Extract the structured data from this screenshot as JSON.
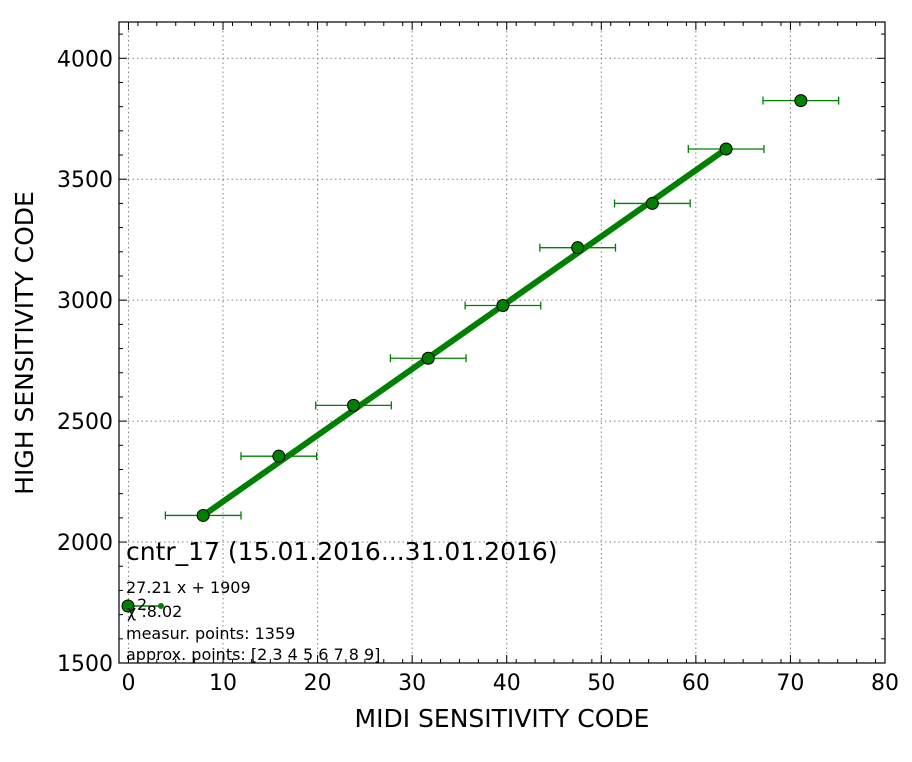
{
  "chart_data": {
    "type": "scatter",
    "title": "cntr_17 (15.01.2016...31.01.2016)",
    "xlabel": "MIDI SENSITIVITY CODE",
    "ylabel": "HIGH SENSITIVITY CODE",
    "xlim": [
      -1,
      80
    ],
    "ylim": [
      1500,
      4150
    ],
    "xticks": [
      0,
      10,
      20,
      30,
      40,
      50,
      60,
      70,
      80
    ],
    "yticks": [
      1500,
      2000,
      2500,
      3000,
      3500,
      4000
    ],
    "grid": true,
    "legend_position": "lower-left",
    "colors": {
      "series": "#008000",
      "fit": "#008000",
      "marker_edge": "#000000",
      "grid": "#808080"
    },
    "series": [
      {
        "x": [
          7.9,
          15.9,
          23.8,
          31.7,
          39.6,
          47.5,
          55.4,
          63.2,
          71.1
        ],
        "y": [
          2110,
          2355,
          2565,
          2760,
          2978,
          3217,
          3400,
          3625,
          3825
        ],
        "xerr": [
          4,
          4,
          4,
          4,
          4,
          4,
          4,
          4,
          4
        ]
      }
    ],
    "fit_line": {
      "x": [
        7.9,
        63.2
      ],
      "y": [
        2110,
        3625
      ]
    },
    "annotations": {
      "equation": "27.21 x + 1909",
      "chi2": "χ  :8.02",
      "chi2_superscript": "2",
      "measur_points": "measur. points: 1359",
      "approx_points": "approx. points: [2 3 4 5 6 7 8 9]"
    }
  }
}
